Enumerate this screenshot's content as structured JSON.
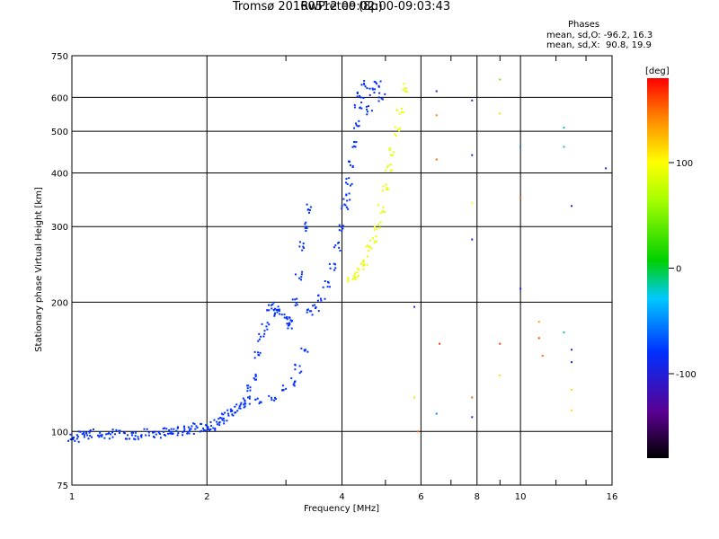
{
  "chart_data": {
    "type": "scatter",
    "title": "Tromsø 20160512 09:02:00-09:03:43",
    "subtitle": "RwPretec (8p)",
    "xlabel": "Frequency [MHz]",
    "ylabel": "Stationary phase Virtual Height [km]",
    "x_scale": "log",
    "y_scale": "log",
    "xlim": [
      1,
      16
    ],
    "ylim": [
      75,
      750
    ],
    "x_ticks": [
      1,
      2,
      4,
      6,
      8,
      10,
      16
    ],
    "y_ticks": [
      75,
      100,
      200,
      300,
      400,
      500,
      600,
      750
    ],
    "grid": true,
    "stats": {
      "heading": "Phases",
      "o_line": "mean, sd,O: -96.2, 16.3",
      "x_line": "mean, sd,X:  90.8, 19.9"
    },
    "colorbar": {
      "label": "[deg]",
      "range": [
        -180,
        180
      ],
      "ticks": [
        100,
        0,
        -100
      ]
    },
    "series": [
      {
        "mode": "O",
        "phase_deg": -100,
        "points": [
          [
            1.0,
            97
          ],
          [
            1.02,
            96
          ],
          [
            1.05,
            99
          ],
          [
            1.08,
            98
          ],
          [
            1.1,
            99
          ],
          [
            1.15,
            98
          ],
          [
            1.2,
            98
          ],
          [
            1.25,
            99
          ],
          [
            1.3,
            98
          ],
          [
            1.35,
            98
          ],
          [
            1.4,
            98
          ],
          [
            1.45,
            99
          ],
          [
            1.5,
            99
          ],
          [
            1.55,
            99
          ],
          [
            1.6,
            100
          ],
          [
            1.65,
            99
          ],
          [
            1.7,
            100
          ],
          [
            1.75,
            100
          ],
          [
            1.8,
            101
          ],
          [
            1.85,
            101
          ],
          [
            1.9,
            102
          ],
          [
            1.95,
            102
          ],
          [
            2.0,
            103
          ],
          [
            2.05,
            103
          ],
          [
            2.1,
            105
          ],
          [
            2.15,
            106
          ],
          [
            2.2,
            108
          ],
          [
            2.25,
            110
          ],
          [
            2.3,
            112
          ],
          [
            2.35,
            114
          ],
          [
            2.4,
            116
          ],
          [
            2.45,
            118
          ],
          [
            2.5,
            125
          ],
          [
            2.55,
            135
          ],
          [
            2.6,
            150
          ],
          [
            2.65,
            165
          ],
          [
            2.7,
            175
          ],
          [
            2.75,
            195
          ],
          [
            2.8,
            190
          ],
          [
            2.85,
            195
          ],
          [
            2.9,
            190
          ],
          [
            3.0,
            185
          ],
          [
            3.05,
            175
          ],
          [
            3.1,
            180
          ],
          [
            3.15,
            200
          ],
          [
            3.2,
            230
          ],
          [
            3.25,
            270
          ],
          [
            3.3,
            300
          ],
          [
            3.35,
            330
          ],
          [
            3.4,
            190
          ],
          [
            3.5,
            195
          ],
          [
            3.6,
            205
          ],
          [
            3.7,
            220
          ],
          [
            3.8,
            240
          ],
          [
            3.9,
            270
          ],
          [
            4.0,
            300
          ],
          [
            4.05,
            330
          ],
          [
            4.1,
            350
          ],
          [
            4.15,
            380
          ],
          [
            4.2,
            420
          ],
          [
            4.25,
            470
          ],
          [
            4.3,
            520
          ],
          [
            4.35,
            570
          ],
          [
            4.4,
            610
          ],
          [
            4.5,
            640
          ],
          [
            4.6,
            560
          ],
          [
            4.7,
            620
          ],
          [
            4.8,
            640
          ],
          [
            4.9,
            600
          ],
          [
            2.6,
            118
          ],
          [
            2.8,
            120
          ],
          [
            3.0,
            125
          ],
          [
            3.1,
            130
          ],
          [
            3.2,
            140
          ],
          [
            3.3,
            155
          ]
        ]
      },
      {
        "mode": "X",
        "phase_deg": 90,
        "points": [
          [
            4.2,
            225
          ],
          [
            4.3,
            230
          ],
          [
            4.4,
            240
          ],
          [
            4.5,
            250
          ],
          [
            4.6,
            265
          ],
          [
            4.7,
            280
          ],
          [
            4.8,
            300
          ],
          [
            4.9,
            330
          ],
          [
            5.0,
            370
          ],
          [
            5.1,
            410
          ],
          [
            5.2,
            450
          ],
          [
            5.3,
            500
          ],
          [
            5.4,
            560
          ],
          [
            5.5,
            630
          ]
        ]
      },
      {
        "mode": "scatter",
        "points": [
          [
            6.5,
            620,
            -110
          ],
          [
            6.5,
            545,
            140
          ],
          [
            6.5,
            430,
            150
          ],
          [
            6.6,
            160,
            160
          ],
          [
            6.5,
            110,
            -60
          ],
          [
            7.8,
            590,
            -110
          ],
          [
            7.8,
            440,
            -110
          ],
          [
            7.8,
            340,
            100
          ],
          [
            7.8,
            280,
            -110
          ],
          [
            7.8,
            120,
            150
          ],
          [
            7.8,
            108,
            -110
          ],
          [
            9.0,
            660,
            40
          ],
          [
            9.0,
            550,
            110
          ],
          [
            9.0,
            160,
            160
          ],
          [
            9.0,
            135,
            110
          ],
          [
            10.0,
            460,
            -60
          ],
          [
            10.0,
            350,
            150
          ],
          [
            10.0,
            215,
            -110
          ],
          [
            11.0,
            180,
            130
          ],
          [
            11.0,
            165,
            160
          ],
          [
            11.2,
            150,
            150
          ],
          [
            12.5,
            510,
            -20
          ],
          [
            12.5,
            460,
            -20
          ],
          [
            12.5,
            170,
            -20
          ],
          [
            13.0,
            335,
            -110
          ],
          [
            13.0,
            155,
            -110
          ],
          [
            13.0,
            145,
            -110
          ],
          [
            13.0,
            125,
            110
          ],
          [
            13.0,
            112,
            110
          ],
          [
            15.5,
            410,
            -110
          ],
          [
            5.8,
            195,
            -110
          ],
          [
            5.8,
            120,
            110
          ],
          [
            5.9,
            100,
            150
          ]
        ]
      }
    ]
  }
}
